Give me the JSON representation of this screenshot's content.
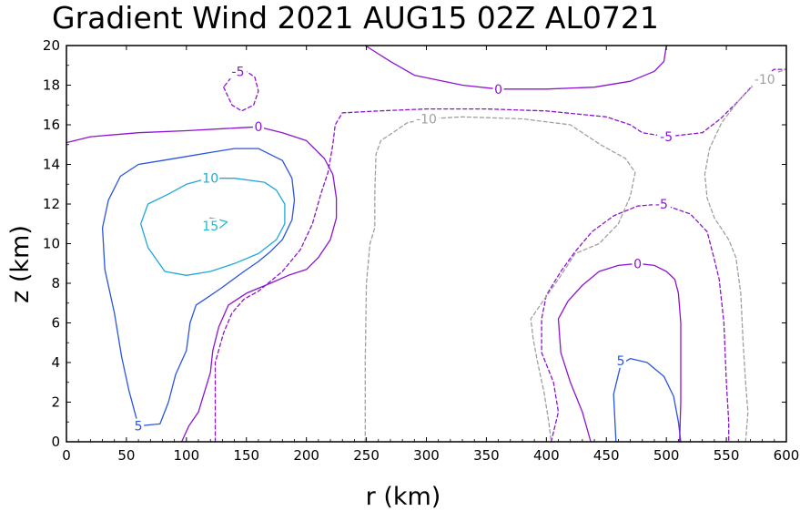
{
  "chart_data": {
    "type": "contour",
    "title": "Gradient Wind 2021 AUG15 02Z  AL0721",
    "xlabel": "r (km)",
    "ylabel": "z (km)",
    "xlim": [
      0,
      600
    ],
    "ylim": [
      0,
      20
    ],
    "xticks": [
      0,
      50,
      100,
      150,
      200,
      250,
      300,
      350,
      400,
      450,
      500,
      550,
      600
    ],
    "yticks": [
      0,
      2,
      4,
      6,
      8,
      10,
      12,
      14,
      16,
      18,
      20
    ],
    "contours": [
      {
        "level": 15,
        "label": "15",
        "color": "#1fbcd2",
        "dashed": false,
        "points": [
          [
            113,
            10.8
          ],
          [
            120,
            11.3
          ],
          [
            128,
            11.2
          ],
          [
            134,
            11.1
          ],
          [
            128,
            10.8
          ],
          [
            120,
            10.7
          ],
          [
            113,
            10.8
          ]
        ],
        "label_at": [
          120,
          10.9
        ]
      },
      {
        "level": 10,
        "label": "10",
        "color": "#1fa8d8",
        "dashed": false,
        "points": [
          [
            85,
            12.5
          ],
          [
            100,
            13.0
          ],
          [
            118,
            13.3
          ],
          [
            140,
            13.3
          ],
          [
            165,
            13.1
          ],
          [
            175,
            12.7
          ],
          [
            182,
            12.0
          ],
          [
            182,
            11.0
          ],
          [
            175,
            10.2
          ],
          [
            160,
            9.5
          ],
          [
            140,
            9.0
          ],
          [
            120,
            8.6
          ],
          [
            100,
            8.4
          ],
          [
            82,
            8.6
          ],
          [
            68,
            9.8
          ],
          [
            62,
            11.0
          ],
          [
            68,
            12.0
          ],
          [
            85,
            12.5
          ]
        ],
        "label_at": [
          120,
          13.3
        ]
      },
      {
        "level": 5,
        "label": "5",
        "color": "#2a55e0",
        "dashed": false,
        "points": [
          [
            60,
            0.8
          ],
          [
            78,
            0.9
          ],
          [
            85,
            2.0
          ],
          [
            91,
            3.4
          ],
          [
            100,
            4.6
          ],
          [
            103,
            6.0
          ],
          [
            108,
            6.9
          ],
          [
            118,
            7.3
          ],
          [
            130,
            7.8
          ],
          [
            148,
            8.6
          ],
          [
            160,
            9.1
          ],
          [
            170,
            9.6
          ],
          [
            180,
            10.2
          ],
          [
            188,
            11.2
          ],
          [
            190,
            12.2
          ],
          [
            188,
            13.3
          ],
          [
            180,
            14.2
          ],
          [
            160,
            14.8
          ],
          [
            140,
            14.8
          ],
          [
            120,
            14.6
          ],
          [
            100,
            14.4
          ],
          [
            80,
            14.2
          ],
          [
            60,
            14.0
          ],
          [
            45,
            13.4
          ],
          [
            35,
            12.2
          ],
          [
            30,
            10.8
          ],
          [
            32,
            8.7
          ],
          [
            40,
            6.5
          ],
          [
            46,
            4.3
          ],
          [
            52,
            2.6
          ],
          [
            60,
            0.8
          ]
        ],
        "label_at": [
          60,
          0.8
        ]
      },
      {
        "level": 5,
        "label": "5",
        "color": "#2a55e0",
        "dashed": false,
        "points": [
          [
            458,
            0
          ],
          [
            456,
            2.4
          ],
          [
            462,
            3.9
          ],
          [
            470,
            4.2
          ],
          [
            484,
            4.0
          ],
          [
            498,
            3.3
          ],
          [
            506,
            2.3
          ],
          [
            510,
            1.0
          ],
          [
            512,
            0
          ]
        ],
        "label_at": [
          462,
          4.1
        ]
      },
      {
        "level": 0,
        "label": "0",
        "color": "#8c14d2",
        "dashed": false,
        "points": [
          [
            0,
            15.1
          ],
          [
            20,
            15.4
          ],
          [
            60,
            15.6
          ],
          [
            100,
            15.7
          ],
          [
            130,
            15.8
          ],
          [
            160,
            15.9
          ],
          [
            180,
            15.6
          ],
          [
            200,
            15.2
          ],
          [
            215,
            14.3
          ],
          [
            222,
            13.5
          ],
          [
            225,
            12.3
          ],
          [
            225,
            11.3
          ],
          [
            220,
            10.2
          ],
          [
            210,
            9.3
          ],
          [
            200,
            8.7
          ],
          [
            185,
            8.4
          ],
          [
            170,
            8.0
          ],
          [
            150,
            7.5
          ],
          [
            135,
            6.9
          ],
          [
            127,
            5.8
          ],
          [
            122,
            4.6
          ],
          [
            120,
            3.5
          ],
          [
            115,
            2.5
          ],
          [
            110,
            1.5
          ],
          [
            102,
            0.8
          ],
          [
            96,
            0
          ]
        ],
        "label_at": [
          160,
          15.9
        ]
      },
      {
        "level": 0,
        "label": "0",
        "color": "#8c14d2",
        "dashed": false,
        "points": [
          [
            249,
            20
          ],
          [
            270,
            19.2
          ],
          [
            290,
            18.5
          ],
          [
            330,
            18.0
          ],
          [
            360,
            17.8
          ],
          [
            400,
            17.8
          ],
          [
            440,
            17.9
          ],
          [
            470,
            18.2
          ],
          [
            490,
            18.7
          ],
          [
            498,
            19.2
          ],
          [
            500,
            20
          ]
        ],
        "label_at": [
          360,
          17.8
        ]
      },
      {
        "level": 0,
        "label": "0",
        "color": "#8c14d2",
        "dashed": false,
        "points": [
          [
            437,
            0
          ],
          [
            430,
            1.5
          ],
          [
            420,
            3.0
          ],
          [
            412,
            4.5
          ],
          [
            410,
            6.2
          ],
          [
            418,
            7.1
          ],
          [
            430,
            7.9
          ],
          [
            444,
            8.6
          ],
          [
            460,
            8.9
          ],
          [
            476,
            9.0
          ],
          [
            490,
            8.9
          ],
          [
            500,
            8.6
          ],
          [
            507,
            8.2
          ],
          [
            510,
            7.5
          ],
          [
            512,
            6.0
          ],
          [
            512,
            4.0
          ],
          [
            512,
            2.0
          ],
          [
            511,
            0
          ]
        ],
        "label_at": [
          476,
          9.0
        ]
      },
      {
        "level": -5,
        "label": "-5",
        "color": "#8c14d2",
        "dashed": true,
        "points": [
          [
            131,
            17.9
          ],
          [
            138,
            17.0
          ],
          [
            146,
            16.7
          ],
          [
            156,
            17.0
          ],
          [
            160,
            17.7
          ],
          [
            157,
            18.4
          ],
          [
            150,
            18.7
          ],
          [
            140,
            18.6
          ],
          [
            131,
            17.9
          ]
        ],
        "label_at": [
          143,
          18.7
        ]
      },
      {
        "level": -5,
        "label": "-5",
        "color": "#8c14d2",
        "dashed": true,
        "points": [
          [
            124,
            0
          ],
          [
            124,
            2.5
          ],
          [
            124,
            4.0
          ],
          [
            131,
            5.5
          ],
          [
            138,
            6.5
          ],
          [
            148,
            7.2
          ],
          [
            160,
            7.6
          ],
          [
            180,
            8.6
          ],
          [
            195,
            9.7
          ],
          [
            205,
            11.0
          ],
          [
            212,
            12.5
          ],
          [
            218,
            13.6
          ],
          [
            222,
            15.0
          ],
          [
            224,
            16.0
          ],
          [
            230,
            16.6
          ],
          [
            260,
            16.7
          ],
          [
            300,
            16.8
          ],
          [
            350,
            16.8
          ],
          [
            400,
            16.7
          ],
          [
            450,
            16.4
          ],
          [
            470,
            16.0
          ],
          [
            480,
            15.6
          ],
          [
            500,
            15.4
          ],
          [
            530,
            15.6
          ],
          [
            545,
            16.3
          ],
          [
            560,
            17.2
          ],
          [
            575,
            18.2
          ],
          [
            590,
            18.8
          ],
          [
            600,
            18.8
          ]
        ],
        "label_at": [
          500,
          15.4
        ]
      },
      {
        "level": -5,
        "label": "-5",
        "color": "#8c14d2",
        "dashed": true,
        "points": [
          [
            404,
            0
          ],
          [
            410,
            1.5
          ],
          [
            406,
            3.0
          ],
          [
            396,
            4.5
          ],
          [
            396,
            6.2
          ],
          [
            400,
            7.4
          ],
          [
            412,
            8.6
          ],
          [
            424,
            9.6
          ],
          [
            438,
            10.6
          ],
          [
            456,
            11.4
          ],
          [
            476,
            11.9
          ],
          [
            496,
            12.0
          ],
          [
            520,
            11.5
          ],
          [
            534,
            10.6
          ],
          [
            540,
            9.2
          ],
          [
            544,
            8.2
          ],
          [
            548,
            6.0
          ],
          [
            550,
            3.0
          ],
          [
            552,
            1.0
          ],
          [
            552,
            0
          ]
        ],
        "label_at": [
          496,
          12.0
        ]
      },
      {
        "level": -10,
        "label": "-10",
        "color": "#a0a0a0",
        "dashed": true,
        "points": [
          [
            249,
            0
          ],
          [
            249,
            4.0
          ],
          [
            250,
            8.0
          ],
          [
            253,
            10.0
          ],
          [
            257,
            10.8
          ],
          [
            257,
            12.5
          ],
          [
            258,
            14.5
          ],
          [
            262,
            15.2
          ],
          [
            272,
            15.6
          ],
          [
            284,
            16.1
          ],
          [
            300,
            16.3
          ],
          [
            330,
            16.4
          ],
          [
            380,
            16.3
          ],
          [
            420,
            16.0
          ],
          [
            445,
            15.0
          ],
          [
            466,
            14.3
          ],
          [
            474,
            13.6
          ],
          [
            470,
            12.4
          ],
          [
            460,
            11.0
          ],
          [
            444,
            10.0
          ],
          [
            424,
            9.5
          ],
          [
            410,
            8.2
          ],
          [
            396,
            7.0
          ],
          [
            387,
            6.2
          ],
          [
            389,
            5.2
          ],
          [
            392,
            4.2
          ],
          [
            398,
            2.5
          ],
          [
            402,
            1.0
          ],
          [
            404,
            0
          ]
        ],
        "label_at": [
          300,
          16.3
        ]
      },
      {
        "level": -10,
        "label": "-10",
        "color": "#a0a0a0",
        "dashed": true,
        "points": [
          [
            566,
            0
          ],
          [
            568,
            1.5
          ],
          [
            566,
            3.0
          ],
          [
            564,
            5.0
          ],
          [
            562,
            7.5
          ],
          [
            558,
            9.3
          ],
          [
            552,
            10.2
          ],
          [
            540,
            11.3
          ],
          [
            534,
            12.3
          ],
          [
            532,
            13.5
          ],
          [
            536,
            14.8
          ],
          [
            546,
            16.1
          ],
          [
            560,
            17.2
          ],
          [
            576,
            18.2
          ],
          [
            590,
            18.6
          ],
          [
            600,
            18.8
          ]
        ],
        "label_at": [
          582,
          18.3
        ]
      }
    ]
  }
}
